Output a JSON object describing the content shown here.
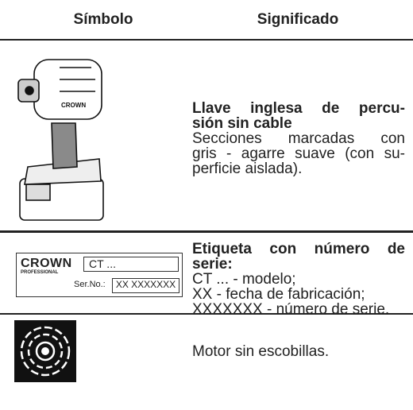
{
  "header": {
    "symbol": "Símbolo",
    "meaning": "Significado"
  },
  "rows": [
    {
      "title_lines": [
        "Llave inglesa de percu-",
        "sión sin cable"
      ],
      "description_lines": [
        "Secciones marcadas con",
        "gris - agarre suave (con su-",
        "perficie aislada)."
      ]
    },
    {
      "label": {
        "brand": "CROWN",
        "brand_sub": "PROFESSIONAL",
        "model": "CT ...",
        "serial_caption": "Ser.No.:",
        "serial": "XX XXXXXXX"
      },
      "title_lines": [
        "Etiqueta con número de",
        "serie:"
      ],
      "description_lines": [
        "CT ... - modelo;",
        "XX - fecha de fabricación;",
        "XXXXXXX - número de serie."
      ]
    },
    {
      "description_lines": [
        "Motor sin escobillas."
      ]
    }
  ]
}
